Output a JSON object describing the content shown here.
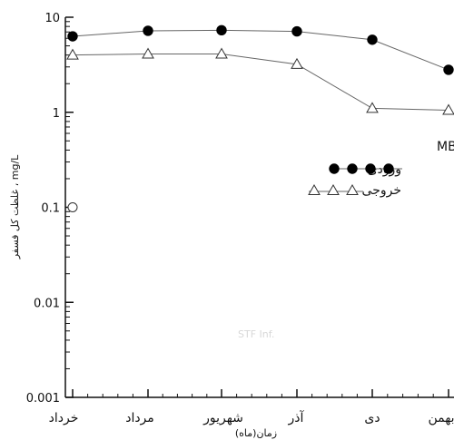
{
  "chart_data": {
    "type": "line",
    "title": "غلظت کل فسفر در ورودی و خروجی MBR",
    "xlabel": "زمان(ماه)",
    "ylabel": "غلظت کل فسفر ، mg/L",
    "y_scale": "log",
    "ylim": [
      0.001,
      10
    ],
    "y_ticks": [
      "10",
      "1",
      "0.1",
      "0.01",
      "0.001"
    ],
    "categories": [
      "خرداد",
      "مرداد",
      "شهریور",
      "آذر",
      "دی",
      "بهمن"
    ],
    "series": [
      {
        "name": "ورودی",
        "marker": "filled-circle",
        "values": [
          6.3,
          7.2,
          7.3,
          7.1,
          5.8,
          2.8
        ]
      },
      {
        "name": "خروجی",
        "marker": "open-triangle",
        "values": [
          4.0,
          4.1,
          4.1,
          3.2,
          1.1,
          1.05
        ]
      }
    ],
    "extra_points": [
      {
        "category": "خرداد",
        "y": 0.1,
        "marker": "open-circle"
      }
    ],
    "grid": false,
    "legend": "right-middle",
    "watermark": "STF Inf."
  },
  "colors": {
    "axis": "#111111",
    "line": "#555555",
    "marker": "#000000"
  }
}
